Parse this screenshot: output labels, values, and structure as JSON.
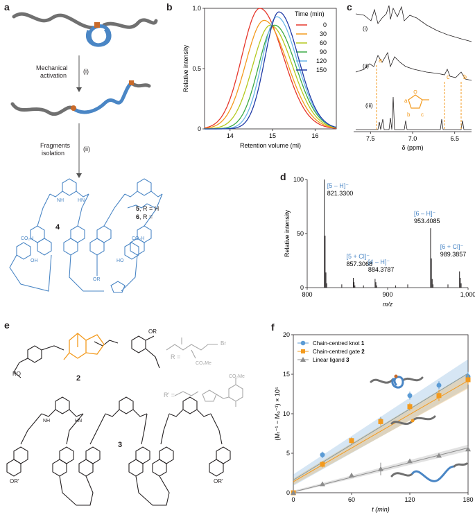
{
  "panels": {
    "a": "a",
    "b": "b",
    "c": "c",
    "d": "d",
    "e": "e",
    "f": "f"
  },
  "panel_a": {
    "step1_label": "Mechanical",
    "step1_label2": "activation",
    "step1_roman": "(i)",
    "step2_label": "Fragments",
    "step2_label2": "isolation",
    "step2_roman": "(ii)",
    "compound4": "4",
    "compound5": "5",
    "compound5_r": ", R = H",
    "compound6": "6",
    "compound6_r": ", R =",
    "groups": {
      "cooh1": "CO₂H",
      "oh1": "OH",
      "cooh2": "CO₂H",
      "ho2": "HO",
      "nh": "NH",
      "hn": "HN",
      "or": "OR",
      "n": "N",
      "o": "O",
      "h": "H"
    }
  },
  "chart_b": {
    "type": "line",
    "xlabel": "Retention volume (ml)",
    "ylabel": "Relative intensity",
    "xlim": [
      13.4,
      16.5
    ],
    "ylim": [
      0,
      1.0
    ],
    "xticks": [
      "14",
      "15",
      "16"
    ],
    "yticks": [
      "0",
      "0.5",
      "1.0"
    ],
    "legend_title": "Time (min)",
    "legend_position": "top-right",
    "series": [
      {
        "name": "0",
        "color": "#e6362b",
        "peak": 14.7,
        "sigma_l": 0.42,
        "sigma_r": 0.55,
        "amp": 1.0
      },
      {
        "name": "30",
        "color": "#f39a1d",
        "peak": 14.8,
        "sigma_l": 0.43,
        "sigma_r": 0.55,
        "amp": 0.9
      },
      {
        "name": "60",
        "color": "#b4c91d",
        "peak": 14.95,
        "sigma_l": 0.42,
        "sigma_r": 0.52,
        "amp": 0.86
      },
      {
        "name": "90",
        "color": "#3aaa45",
        "peak": 15.05,
        "sigma_l": 0.38,
        "sigma_r": 0.5,
        "amp": 0.86
      },
      {
        "name": "120",
        "color": "#6bb6e8",
        "peak": 15.1,
        "sigma_l": 0.35,
        "sigma_r": 0.48,
        "amp": 0.93
      },
      {
        "name": "150",
        "color": "#1f3aa6",
        "peak": 15.15,
        "sigma_l": 0.33,
        "sigma_r": 0.46,
        "amp": 0.97
      }
    ]
  },
  "chart_c": {
    "xlabel": "δ (ppm)",
    "xticks": [
      "7.5",
      "7.0",
      "6.5"
    ],
    "trace_labels": [
      "(i)",
      "(ii)",
      "(iii)"
    ],
    "peak_labels": {
      "a": "a",
      "b": "b",
      "c": "c"
    },
    "furan_labels": {
      "a": "a",
      "b": "b",
      "c": "c",
      "o": "O"
    },
    "highlight_color": "#f39a1d"
  },
  "chart_d": {
    "type": "bar",
    "xlabel": "m/z",
    "ylabel": "Relative intensity",
    "xlim": [
      800,
      1000
    ],
    "ylim": [
      0,
      100
    ],
    "xticks": [
      "800",
      "900",
      "1,000"
    ],
    "yticks": [
      "0",
      "50",
      "100"
    ],
    "annotations": [
      {
        "label": "[5 – H]⁻",
        "value": "821.3300"
      },
      {
        "label": "[5 + Cl]⁻",
        "value": "857.3068"
      },
      {
        "label": "[4 – H]⁻",
        "value": "884.3787"
      },
      {
        "label": "[6 – H]⁻",
        "value": "953.4085"
      },
      {
        "label": "[6 + Cl]⁻",
        "value": "989.3857"
      }
    ],
    "peaks": [
      {
        "x": 821.3,
        "y": 100
      },
      {
        "x": 822.3,
        "y": 48
      },
      {
        "x": 823.3,
        "y": 14
      },
      {
        "x": 824.3,
        "y": 4
      },
      {
        "x": 843,
        "y": 3
      },
      {
        "x": 857.3,
        "y": 9
      },
      {
        "x": 858.3,
        "y": 5
      },
      {
        "x": 859.3,
        "y": 2
      },
      {
        "x": 870,
        "y": 2
      },
      {
        "x": 884.4,
        "y": 8
      },
      {
        "x": 885.4,
        "y": 5
      },
      {
        "x": 886.4,
        "y": 2
      },
      {
        "x": 910,
        "y": 2
      },
      {
        "x": 925,
        "y": 3
      },
      {
        "x": 953.4,
        "y": 55
      },
      {
        "x": 954.4,
        "y": 27
      },
      {
        "x": 955.4,
        "y": 8
      },
      {
        "x": 956.4,
        "y": 3
      },
      {
        "x": 975,
        "y": 3
      },
      {
        "x": 989.4,
        "y": 15
      },
      {
        "x": 990.4,
        "y": 9
      },
      {
        "x": 991.4,
        "y": 4
      }
    ]
  },
  "panel_e": {
    "compound2": "2",
    "compound3": "3",
    "r_label": "R =",
    "r_prime_label": "R′ =",
    "groups": {
      "or": "OR",
      "ro": "RO",
      "o": "O",
      "n": "N",
      "br": "Br",
      "co2me": "CO₂Me",
      "co2me2": "CO₂Me",
      "nh": "NH",
      "hn": "HN",
      "ornprime": "OR′",
      "orprime2": "OR′"
    }
  },
  "chart_f": {
    "type": "scatter",
    "xlabel": "t (min)",
    "ylabel": "(Mₜ⁻¹ − M₀⁻¹) × 10⁵",
    "xlim": [
      0,
      180
    ],
    "ylim": [
      0,
      20
    ],
    "xticks": [
      "0",
      "60",
      "120",
      "180"
    ],
    "yticks": [
      "0",
      "5",
      "10",
      "15",
      "20"
    ],
    "legend_position": "top-left",
    "series": [
      {
        "name": "Chain-centred knot",
        "bold": "1",
        "color": "#5b9bd5",
        "marker": "circle",
        "x": [
          0,
          30,
          60,
          90,
          120,
          150,
          180
        ],
        "y": [
          0,
          4.8,
          6.6,
          9.1,
          12.3,
          13.6,
          14.7
        ],
        "err": [
          0.3,
          0.4,
          0.4,
          0.5,
          0.5,
          0.5,
          0.6
        ]
      },
      {
        "name": "Chain-centred gate",
        "bold": "2",
        "color": "#f39a1d",
        "marker": "square",
        "x": [
          0,
          30,
          60,
          90,
          120,
          150,
          180
        ],
        "y": [
          0,
          3.6,
          6.6,
          9.0,
          10.9,
          12.3,
          14.3
        ],
        "err": [
          0.3,
          0.4,
          0.4,
          0.5,
          0.5,
          0.7,
          0.6
        ]
      },
      {
        "name": "Linear ligand",
        "bold": "3",
        "color": "#8c8c8c",
        "marker": "triangle",
        "x": [
          0,
          30,
          60,
          90,
          120,
          150,
          180
        ],
        "y": [
          0,
          1.1,
          2.2,
          3.0,
          4.0,
          4.7,
          5.5
        ],
        "err": [
          0.2,
          0.2,
          0.2,
          0.8,
          0.2,
          0.2,
          0.2
        ]
      }
    ],
    "fits": [
      {
        "color": "#5b9bd5",
        "y0": 1.6,
        "slope": 0.075,
        "band": 1.8
      },
      {
        "color": "#f39a1d",
        "y0": 1.4,
        "slope": 0.071,
        "band": 1.0
      },
      {
        "color": "#8c8c8c",
        "y0": 0.1,
        "slope": 0.031,
        "band": 0.4
      }
    ]
  }
}
